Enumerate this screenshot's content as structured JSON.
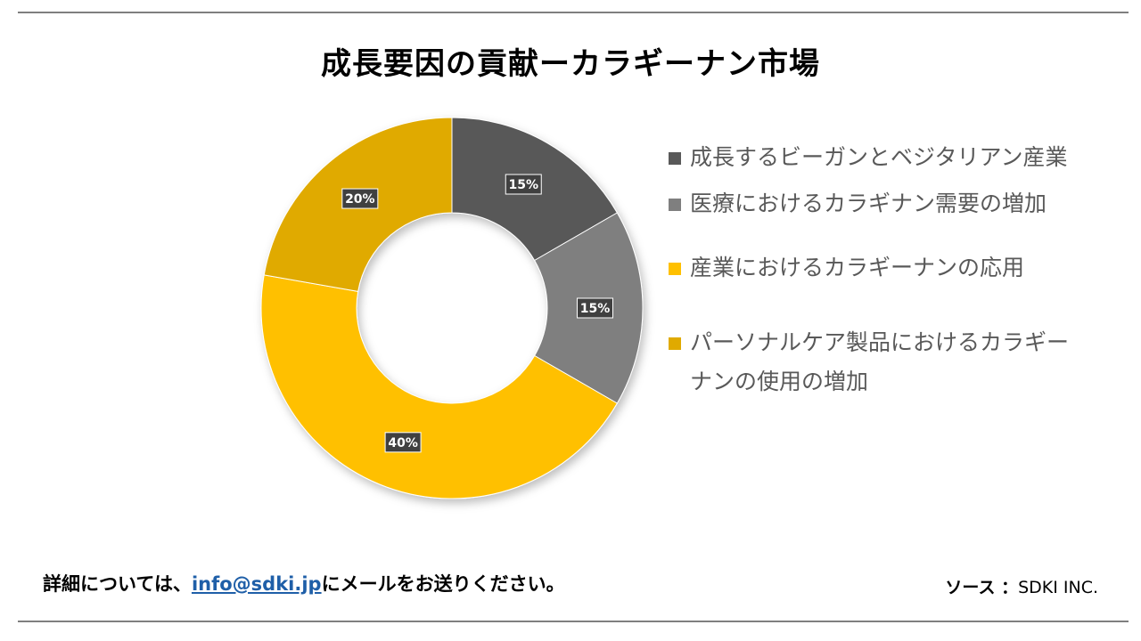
{
  "title": "成長要因の貢献ーカラギーナン市場",
  "chart_data": {
    "type": "pie",
    "donut": true,
    "categories": [
      "成長するビーガンとベジタリアン産業",
      "医療におけるカラギナン需要の増加",
      "産業におけるカラギーナンの応用",
      "パーソナルケア製品におけるカラギーナンの使用の増加"
    ],
    "values": [
      15,
      15,
      40,
      20
    ],
    "data_labels": [
      "15%",
      "15%",
      "40%",
      "20%"
    ],
    "colors": [
      "#595959",
      "#7f7f7f",
      "#ffc000",
      "#e0aa00"
    ],
    "legend_position": "right"
  },
  "legend": {
    "items": [
      {
        "label": "成長するビーガンとベジタリアン産業",
        "color": "#595959"
      },
      {
        "label": "医療におけるカラギナン需要の増加",
        "color": "#7f7f7f"
      },
      {
        "label": "産業におけるカラギーナンの応用",
        "color": "#ffc000"
      },
      {
        "label": "パーソナルケア製品におけるカラギーナンの使用の増加",
        "color": "#e0aa00"
      }
    ]
  },
  "footer": {
    "contact_prefix": "詳細については、",
    "contact_email": "info@sdki.jp",
    "contact_suffix": "にメールをお送りください。",
    "source_label": "ソース ：",
    "source_value": "SDKI INC."
  }
}
